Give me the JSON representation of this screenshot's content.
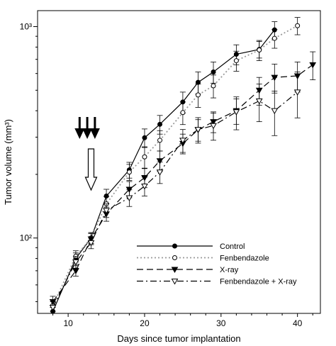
{
  "chart_data": {
    "type": "line",
    "title": "",
    "xlabel": "Days since tumor implantation",
    "ylabel": "Tumor volume (mm³)",
    "xlim": [
      6,
      43
    ],
    "ylim": [
      44,
      1190
    ],
    "y_scale": "log",
    "x_ticks": [
      10,
      20,
      30,
      40
    ],
    "x_tick_labels": [
      "10",
      "20",
      "30",
      "40"
    ],
    "y_ticks": [
      100,
      1000
    ],
    "y_tick_labels": [
      "10²",
      "10³"
    ],
    "legend_position": "lower-right",
    "grid": false,
    "annotations": [
      {
        "kind": "solid-arrows",
        "x": [
          11.5,
          12.5,
          13.5
        ],
        "note": "three solid downward arrows"
      },
      {
        "kind": "open-arrow",
        "x": 13
      }
    ],
    "series": [
      {
        "name": "Control",
        "style": "solid",
        "marker": "filled-circle",
        "points": [
          {
            "x": 8,
            "y": 45,
            "err": 2
          },
          {
            "x": 11,
            "y": 80,
            "err": 5
          },
          {
            "x": 13,
            "y": 100,
            "err": 6
          },
          {
            "x": 15,
            "y": 158,
            "err": 12
          },
          {
            "x": 18,
            "y": 210,
            "err": 18
          },
          {
            "x": 20,
            "y": 298,
            "err": 30
          },
          {
            "x": 22,
            "y": 345,
            "err": 35
          },
          {
            "x": 25,
            "y": 440,
            "err": 50
          },
          {
            "x": 27,
            "y": 545,
            "err": 65
          },
          {
            "x": 29,
            "y": 610,
            "err": 70
          },
          {
            "x": 32,
            "y": 740,
            "err": 80
          },
          {
            "x": 35,
            "y": 780,
            "err": 70
          },
          {
            "x": 37,
            "y": 965,
            "err": 90
          }
        ]
      },
      {
        "name": "Fenbendazole",
        "style": "dotted",
        "marker": "open-circle",
        "points": [
          {
            "x": 8,
            "y": 48,
            "err": 3
          },
          {
            "x": 11,
            "y": 82,
            "err": 5
          },
          {
            "x": 13,
            "y": 100,
            "err": 6
          },
          {
            "x": 15,
            "y": 145,
            "err": 12
          },
          {
            "x": 18,
            "y": 205,
            "err": 18
          },
          {
            "x": 20,
            "y": 242,
            "err": 28
          },
          {
            "x": 22,
            "y": 290,
            "err": 32
          },
          {
            "x": 25,
            "y": 392,
            "err": 48
          },
          {
            "x": 27,
            "y": 475,
            "err": 60
          },
          {
            "x": 29,
            "y": 525,
            "err": 65
          },
          {
            "x": 32,
            "y": 690,
            "err": 75
          },
          {
            "x": 35,
            "y": 775,
            "err": 85
          },
          {
            "x": 37,
            "y": 880,
            "err": 90
          },
          {
            "x": 40,
            "y": 1010,
            "err": 95
          }
        ]
      },
      {
        "name": "X-ray",
        "style": "dashed",
        "marker": "filled-triangle-down",
        "points": [
          {
            "x": 8,
            "y": 50,
            "err": 3
          },
          {
            "x": 11,
            "y": 70,
            "err": 4
          },
          {
            "x": 13,
            "y": 99,
            "err": 6
          },
          {
            "x": 15,
            "y": 130,
            "err": 10
          },
          {
            "x": 18,
            "y": 170,
            "err": 15
          },
          {
            "x": 20,
            "y": 193,
            "err": 20
          },
          {
            "x": 22,
            "y": 232,
            "err": 26
          },
          {
            "x": 25,
            "y": 280,
            "err": 30
          },
          {
            "x": 27,
            "y": 325,
            "err": 38
          },
          {
            "x": 29,
            "y": 355,
            "err": 40
          },
          {
            "x": 32,
            "y": 400,
            "err": 55
          },
          {
            "x": 35,
            "y": 500,
            "err": 75
          },
          {
            "x": 37,
            "y": 575,
            "err": 90
          },
          {
            "x": 40,
            "y": 585,
            "err": 95
          },
          {
            "x": 42,
            "y": 660,
            "err": 100
          }
        ]
      },
      {
        "name": "Fenbendazole + X-ray",
        "style": "dash-dot",
        "marker": "open-triangle-down",
        "points": [
          {
            "x": 8,
            "y": 47,
            "err": 3
          },
          {
            "x": 11,
            "y": 77,
            "err": 5
          },
          {
            "x": 13,
            "y": 95,
            "err": 6
          },
          {
            "x": 15,
            "y": 135,
            "err": 10
          },
          {
            "x": 18,
            "y": 155,
            "err": 14
          },
          {
            "x": 20,
            "y": 176,
            "err": 18
          },
          {
            "x": 22,
            "y": 205,
            "err": 24
          },
          {
            "x": 25,
            "y": 290,
            "err": 36
          },
          {
            "x": 27,
            "y": 326,
            "err": 45
          },
          {
            "x": 29,
            "y": 340,
            "err": 50
          },
          {
            "x": 32,
            "y": 395,
            "err": 70
          },
          {
            "x": 35,
            "y": 445,
            "err": 90
          },
          {
            "x": 37,
            "y": 400,
            "err": 95
          },
          {
            "x": 40,
            "y": 490,
            "err": 120
          }
        ]
      }
    ]
  }
}
